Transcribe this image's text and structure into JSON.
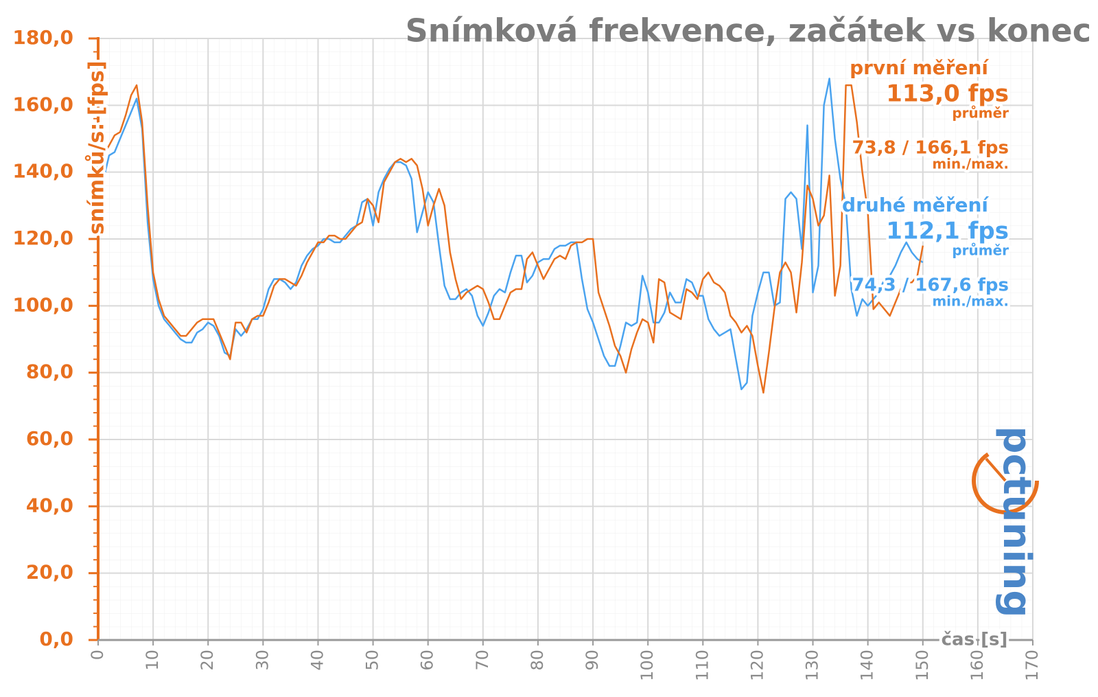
{
  "chart_data": {
    "type": "line",
    "title": "Snímková frekvence, začátek vs konec",
    "y_label": "snímků/s: [fps]",
    "x_label": "čas [s]",
    "logo": "pctuning",
    "x": [
      0,
      1,
      2,
      3,
      4,
      5,
      6,
      7,
      8,
      9,
      10,
      11,
      12,
      13,
      14,
      15,
      16,
      17,
      18,
      19,
      20,
      21,
      22,
      23,
      24,
      25,
      26,
      27,
      28,
      29,
      30,
      31,
      32,
      33,
      34,
      35,
      36,
      37,
      38,
      39,
      40,
      41,
      42,
      43,
      44,
      45,
      46,
      47,
      48,
      49,
      50,
      51,
      52,
      53,
      54,
      55,
      56,
      57,
      58,
      59,
      60,
      61,
      62,
      63,
      64,
      65,
      66,
      67,
      68,
      69,
      70,
      71,
      72,
      73,
      74,
      75,
      76,
      77,
      78,
      79,
      80,
      81,
      82,
      83,
      84,
      85,
      86,
      87,
      88,
      89,
      90,
      91,
      92,
      93,
      94,
      95,
      96,
      97,
      98,
      99,
      100,
      101,
      102,
      103,
      104,
      105,
      106,
      107,
      108,
      109,
      110,
      111,
      112,
      113,
      114,
      115,
      116,
      117,
      118,
      119,
      120,
      121,
      122,
      123,
      124,
      125,
      126,
      127,
      128,
      129,
      130,
      131,
      132,
      133,
      134,
      135,
      136,
      137,
      138,
      139,
      140,
      141,
      142,
      143,
      144,
      145,
      146,
      147,
      148,
      149,
      150
    ],
    "series": [
      {
        "name": "první měření",
        "color": "#e8701f",
        "stats": {
          "average": "113,0 fps",
          "average_label": "průměr",
          "minmax": "73,8 / 166,1 fps",
          "minmax_label": "min./max."
        },
        "values": [
          137,
          145,
          148,
          151,
          152,
          157,
          163,
          166,
          155,
          130,
          110,
          102,
          97,
          95,
          93,
          91,
          91,
          93,
          95,
          96,
          96,
          96,
          92,
          88,
          84,
          95,
          95,
          92,
          96,
          97,
          97,
          101,
          106,
          108,
          108,
          107,
          106,
          109,
          113,
          116,
          119,
          119,
          121,
          121,
          120,
          120,
          122,
          124,
          125,
          132,
          130,
          125,
          137,
          140,
          143,
          144,
          143,
          144,
          142,
          135,
          124,
          130,
          135,
          130,
          116,
          108,
          102,
          104,
          105,
          106,
          105,
          101,
          96,
          96,
          100,
          104,
          105,
          105,
          114,
          116,
          112,
          108,
          111,
          114,
          115,
          114,
          118,
          119,
          119,
          120,
          120,
          104,
          99,
          94,
          88,
          85,
          80,
          87,
          92,
          96,
          95,
          89,
          108,
          107,
          98,
          97,
          96,
          105,
          104,
          102,
          108,
          110,
          107,
          106,
          104,
          97,
          95,
          92,
          94,
          91,
          82,
          74,
          86,
          99,
          110,
          113,
          110,
          98,
          113,
          136,
          132,
          124,
          127,
          139,
          103,
          112,
          166,
          166,
          155,
          140,
          128,
          99,
          101,
          99,
          97,
          101,
          105,
          107,
          107,
          109,
          118
        ]
      },
      {
        "name": "druhé měření",
        "color": "#4aa3ef",
        "stats": {
          "average": "112,1 fps",
          "average_label": "průměr",
          "minmax": "74,3 / 167,6 fps",
          "minmax_label": "min./max."
        },
        "values": [
          135,
          138,
          145,
          146,
          150,
          154,
          158,
          162,
          153,
          125,
          108,
          100,
          96,
          94,
          92,
          90,
          89,
          89,
          92,
          93,
          95,
          94,
          91,
          86,
          85,
          93,
          91,
          93,
          96,
          96,
          99,
          105,
          108,
          108,
          107,
          105,
          107,
          112,
          115,
          117,
          118,
          120,
          120,
          119,
          119,
          121,
          123,
          124,
          131,
          132,
          124,
          134,
          138,
          141,
          143,
          143,
          142,
          138,
          122,
          128,
          134,
          131,
          118,
          106,
          102,
          102,
          104,
          105,
          103,
          97,
          94,
          98,
          103,
          105,
          104,
          110,
          115,
          115,
          107,
          109,
          113,
          114,
          114,
          117,
          118,
          118,
          119,
          119,
          108,
          99,
          95,
          90,
          85,
          82,
          82,
          88,
          95,
          94,
          95,
          109,
          104,
          95,
          95,
          98,
          104,
          101,
          101,
          108,
          107,
          103,
          103,
          96,
          93,
          91,
          92,
          93,
          84,
          75,
          77,
          97,
          104,
          110,
          110,
          100,
          101,
          132,
          134,
          132,
          117,
          154,
          104,
          112,
          160,
          168,
          150,
          138,
          130,
          105,
          97,
          102,
          100,
          102,
          104,
          108,
          109,
          112,
          116,
          119,
          116,
          114,
          113
        ]
      }
    ],
    "xlim": [
      0,
      170
    ],
    "xticks": [
      0,
      10,
      20,
      30,
      40,
      50,
      60,
      70,
      80,
      90,
      100,
      110,
      120,
      130,
      140,
      150,
      160,
      170
    ],
    "ylim": [
      0,
      180
    ],
    "yticks": [
      {
        "value": 0,
        "label": "0,0"
      },
      {
        "value": 20,
        "label": "20,0"
      },
      {
        "value": 40,
        "label": "40,0"
      },
      {
        "value": 60,
        "label": "60,0"
      },
      {
        "value": 80,
        "label": "80,0"
      },
      {
        "value": 100,
        "label": "100,0"
      },
      {
        "value": 120,
        "label": "120,0"
      },
      {
        "value": 140,
        "label": "140,0"
      },
      {
        "value": 160,
        "label": "160,0"
      },
      {
        "value": 180,
        "label": "180,0"
      }
    ],
    "grid": true,
    "axis_color": "#e8701f"
  }
}
